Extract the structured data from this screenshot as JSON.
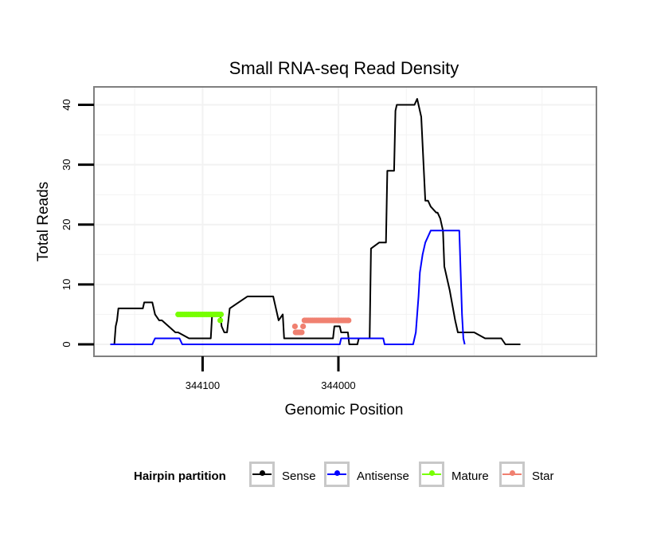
{
  "chart_data": {
    "type": "line",
    "title": "Small RNA-seq Read Density",
    "xlabel": "Genomic Position",
    "ylabel": "Total Reads",
    "xlim": [
      344180,
      343810
    ],
    "ylim": [
      -2,
      43
    ],
    "x_reversed": true,
    "x_ticks": [
      344100,
      344000
    ],
    "x_tick_labels": [
      "344100",
      "344000"
    ],
    "y_ticks": [
      0,
      10,
      20,
      30,
      40
    ],
    "y_tick_labels": [
      "0",
      "10",
      "20",
      "30",
      "40"
    ],
    "grid": true,
    "legend_position": "bottom",
    "legend_title": "Hairpin partition",
    "series": [
      {
        "name": "Sense",
        "color": "#000000",
        "style": "line",
        "x": [
          344168,
          344165,
          344164,
          344163,
          344162,
          344161,
          344144,
          344143,
          344137,
          344135,
          344132,
          344130,
          344120,
          344118,
          344110,
          344108,
          344094,
          344093,
          344091,
          344088,
          344087,
          344086,
          344084,
          344083,
          344082,
          344080,
          344067,
          344065,
          344063,
          344062,
          344060,
          344048,
          344044,
          344041,
          344040,
          344018,
          344017,
          344004,
          344003,
          343999,
          343998,
          343993,
          343992,
          343986,
          343985,
          343978,
          343977,
          343976,
          343970,
          343969,
          343965,
          343964,
          343959,
          343958,
          343957,
          343957,
          343944,
          343942,
          343941,
          343941,
          343939,
          343936,
          343934,
          343932,
          343928,
          343927,
          343925,
          343924,
          343923,
          343922,
          343920,
          343918,
          343914,
          343912,
          343902,
          343900,
          343892,
          343890,
          343880,
          343877,
          343866
        ],
        "y": [
          0,
          0,
          3,
          4,
          6,
          6,
          6,
          7,
          7,
          5,
          4,
          4,
          2,
          2,
          1,
          1,
          1,
          5,
          5,
          5,
          5,
          3,
          2,
          2,
          2,
          6,
          8,
          8,
          8,
          8,
          8,
          8,
          4,
          5,
          1,
          1,
          1,
          1,
          3,
          3,
          2,
          2,
          0,
          0,
          1,
          1,
          1,
          16,
          17,
          17,
          17,
          29,
          29,
          39,
          40,
          40,
          40,
          41,
          40,
          40,
          38,
          24,
          24,
          23,
          22,
          22,
          21,
          20,
          19,
          13,
          11,
          9,
          4,
          2,
          2,
          2,
          1,
          1,
          1,
          0,
          0
        ]
      },
      {
        "name": "Antisense",
        "color": "#0000ff",
        "style": "line",
        "x": [
          344168,
          344137,
          344136,
          344135,
          344117,
          344115,
          343999,
          343998,
          343992,
          343987,
          343986,
          343967,
          343966,
          343945,
          343944,
          343943,
          343942,
          343941,
          343940,
          343938,
          343936,
          343934,
          343932,
          343911,
          343910,
          343909,
          343908,
          343907
        ],
        "y": [
          0,
          0,
          0.5,
          1,
          1,
          0,
          0,
          1,
          1,
          1,
          1,
          1,
          0,
          0,
          1,
          2,
          5,
          8,
          12,
          15,
          17,
          18,
          19,
          19,
          12,
          5,
          1,
          0
        ]
      },
      {
        "name": "Mature",
        "color": "#77ff00",
        "style": "points",
        "x": [
          344118,
          344116.5,
          344115,
          344113.5,
          344112,
          344110.5,
          344109,
          344107.5,
          344106,
          344104.5,
          344103,
          344101.5,
          344100,
          344098.5,
          344097,
          344095.5,
          344094,
          344092.5,
          344091,
          344089.5,
          344088,
          344087,
          344086.5
        ],
        "y": [
          5,
          5,
          5,
          5,
          5,
          5,
          5,
          5,
          5,
          5,
          5,
          5,
          5,
          5,
          5,
          5,
          5,
          5,
          5,
          5,
          5,
          4,
          5
        ]
      },
      {
        "name": "Star",
        "color": "#f08070",
        "style": "points",
        "x": [
          344032,
          344031.5,
          344031,
          344030,
          344029,
          344028,
          344027,
          344026,
          344025,
          344024,
          344023,
          344022,
          344021,
          344020,
          344019,
          344018,
          344017,
          344016,
          344015,
          344014,
          344013,
          344012,
          344011,
          344010,
          344009,
          344008,
          344007,
          344006,
          344005,
          344004,
          344003,
          344002,
          344001,
          344000,
          343999,
          343998,
          343997,
          343996,
          343995,
          343994,
          343993,
          343992.5
        ],
        "y": [
          3,
          2,
          2,
          2,
          2,
          2,
          2,
          3,
          4,
          4,
          4,
          4,
          4,
          4,
          4,
          4,
          4,
          4,
          4,
          4,
          4,
          4,
          4,
          4,
          4,
          4,
          4,
          4,
          4,
          4,
          4,
          4,
          4,
          4,
          4,
          4,
          4,
          4,
          4,
          4,
          4,
          4
        ]
      }
    ]
  },
  "legend": {
    "title": "Hairpin partition",
    "items": [
      {
        "label": "Sense",
        "color": "#000000",
        "marker": "sense-marker-icon"
      },
      {
        "label": "Antisense",
        "color": "#0000ff",
        "marker": "antisense-marker-icon"
      },
      {
        "label": "Mature",
        "color": "#77ff00",
        "marker": "mature-marker-icon"
      },
      {
        "label": "Star",
        "color": "#f08070",
        "marker": "star-marker-icon"
      }
    ]
  },
  "colors": {
    "grid": "#f2f2f2",
    "panel_border": "#7f7f7f",
    "legend_key_border": "#c8c8c8"
  }
}
